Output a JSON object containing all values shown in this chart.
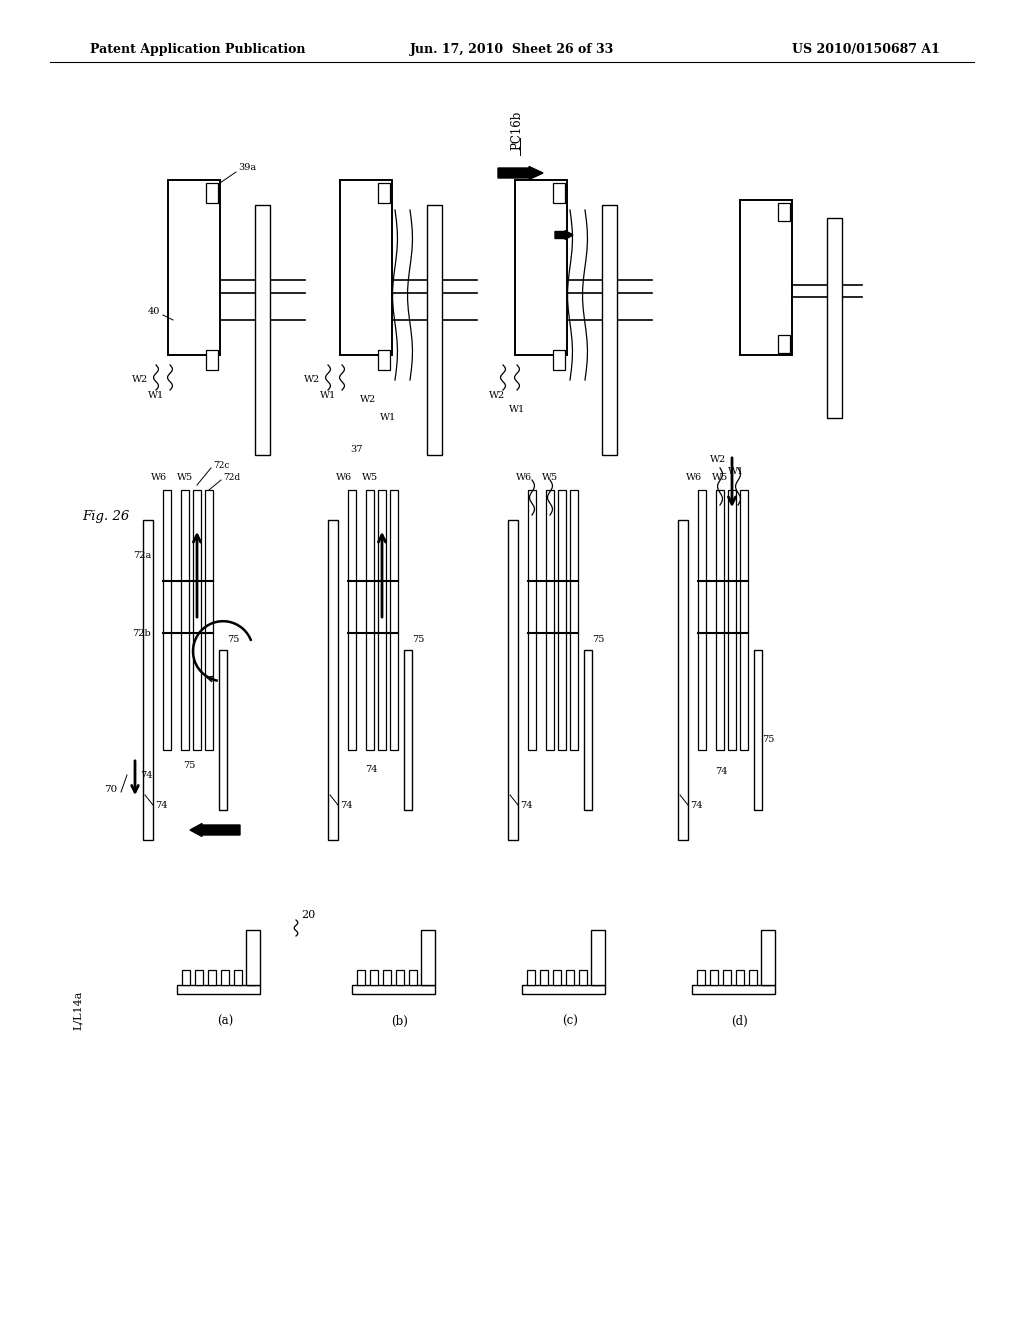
{
  "bg_color": "#ffffff",
  "header_left": "Patent Application Publication",
  "header_mid": "Jun. 17, 2010  Sheet 26 of 33",
  "header_right": "US 2010/0150687 A1",
  "fig_label": "Fig. 26",
  "label_PC16b": "PC16b",
  "label_20": "20",
  "label_LL14a": "L/L14a"
}
